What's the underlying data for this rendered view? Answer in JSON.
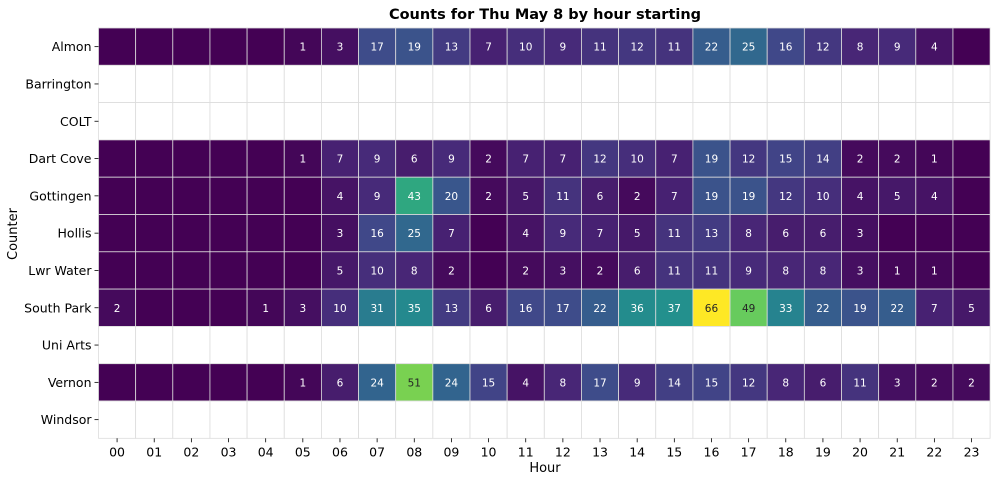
{
  "chart_data": {
    "type": "heatmap",
    "title": "Counts for Thu May 8 by hour starting",
    "xlabel": "Hour",
    "ylabel": "Counter",
    "x": [
      "00",
      "01",
      "02",
      "03",
      "04",
      "05",
      "06",
      "07",
      "08",
      "09",
      "10",
      "11",
      "12",
      "13",
      "14",
      "15",
      "16",
      "17",
      "18",
      "19",
      "20",
      "21",
      "22",
      "23"
    ],
    "y": [
      "Almon",
      "Barrington",
      "COLT",
      "Dart Cove",
      "Gottingen",
      "Hollis",
      "Lwr Water",
      "South Park",
      "Uni Arts",
      "Vernon",
      "Windsor"
    ],
    "colormap": "viridis",
    "vmin": 0,
    "vmax": 66,
    "values": [
      [
        0,
        0,
        0,
        0,
        0,
        1,
        3,
        17,
        19,
        13,
        7,
        10,
        9,
        11,
        12,
        11,
        22,
        25,
        16,
        12,
        8,
        9,
        4,
        0
      ],
      [
        null,
        null,
        null,
        null,
        null,
        null,
        null,
        null,
        null,
        null,
        null,
        null,
        null,
        null,
        null,
        null,
        null,
        null,
        null,
        null,
        null,
        null,
        null,
        null
      ],
      [
        null,
        null,
        null,
        null,
        null,
        null,
        null,
        null,
        null,
        null,
        null,
        null,
        null,
        null,
        null,
        null,
        null,
        null,
        null,
        null,
        null,
        null,
        null,
        null
      ],
      [
        0,
        0,
        0,
        0,
        0,
        1,
        7,
        9,
        6,
        9,
        2,
        7,
        7,
        12,
        10,
        7,
        19,
        12,
        15,
        14,
        2,
        2,
        1,
        0
      ],
      [
        0,
        0,
        0,
        0,
        0,
        0,
        4,
        9,
        43,
        20,
        2,
        5,
        11,
        6,
        2,
        7,
        19,
        19,
        12,
        10,
        4,
        5,
        4,
        0
      ],
      [
        0,
        0,
        0,
        0,
        0,
        0,
        3,
        16,
        25,
        7,
        0,
        4,
        9,
        7,
        5,
        11,
        13,
        8,
        6,
        6,
        3,
        0,
        0,
        0
      ],
      [
        0,
        0,
        0,
        0,
        0,
        0,
        5,
        10,
        8,
        2,
        0,
        2,
        3,
        2,
        6,
        11,
        11,
        9,
        8,
        8,
        3,
        1,
        1,
        0
      ],
      [
        2,
        0,
        0,
        0,
        1,
        3,
        10,
        31,
        35,
        13,
        6,
        16,
        17,
        22,
        36,
        37,
        66,
        49,
        33,
        22,
        19,
        22,
        7,
        5
      ],
      [
        null,
        null,
        null,
        null,
        null,
        null,
        null,
        null,
        null,
        null,
        null,
        null,
        null,
        null,
        null,
        null,
        null,
        null,
        null,
        null,
        null,
        null,
        null,
        null
      ],
      [
        0,
        0,
        0,
        0,
        0,
        1,
        6,
        24,
        51,
        24,
        15,
        4,
        8,
        17,
        9,
        14,
        15,
        12,
        8,
        6,
        11,
        3,
        2,
        2
      ],
      [
        null,
        null,
        null,
        null,
        null,
        null,
        null,
        null,
        null,
        null,
        null,
        null,
        null,
        null,
        null,
        null,
        null,
        null,
        null,
        null,
        null,
        null,
        null,
        null
      ]
    ]
  }
}
